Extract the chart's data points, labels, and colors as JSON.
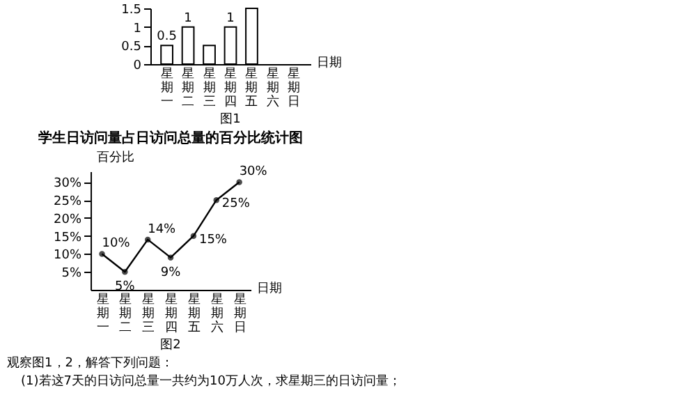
{
  "chart_data": [
    {
      "type": "bar",
      "categories": [
        "星期一",
        "星期二",
        "星期三",
        "星期四",
        "星期五",
        "星期六",
        "星期日"
      ],
      "values": [
        0.5,
        1,
        0.5,
        1,
        1.5,
        null,
        null
      ],
      "value_labels": [
        "0.5",
        "1",
        null,
        "1",
        null,
        null,
        null
      ],
      "color": "#ffffff",
      "xlabel": "日期",
      "ylim": [
        0,
        1.5
      ],
      "yticks": [
        0,
        0.5,
        1,
        1.5
      ],
      "grid": false,
      "legend": false,
      "annotations": [
        "图1"
      ]
    },
    {
      "type": "line",
      "title": "学生日访问量占日访问总量的百分比统计图",
      "categories": [
        "星期一",
        "星期二",
        "星期三",
        "星期四",
        "星期五",
        "星期六",
        "星期日"
      ],
      "values": [
        10,
        5,
        14,
        9,
        15,
        25,
        30
      ],
      "value_labels": [
        "10%",
        "5%",
        "14%",
        "9%",
        "15%",
        "25%",
        "30%"
      ],
      "color": "#000000",
      "marker": "circle",
      "line_style": "solid",
      "xlabel": "日期",
      "ylabel": "百分比",
      "ylim": [
        0,
        33
      ],
      "yticks": [
        {
          "value": 5,
          "label": "5%"
        },
        {
          "value": 10,
          "label": "10%"
        },
        {
          "value": 15,
          "label": "15%"
        },
        {
          "value": 20,
          "label": "20%"
        },
        {
          "value": 25,
          "label": "25%"
        },
        {
          "value": 30,
          "label": "30%"
        }
      ],
      "grid": false,
      "legend": false,
      "annotations": [
        "图2",
        "观察图1，2，解答下列问题：",
        "(1)若这7天的日访问总量一共约为10万人次，求星期三的日访问量；"
      ]
    }
  ]
}
